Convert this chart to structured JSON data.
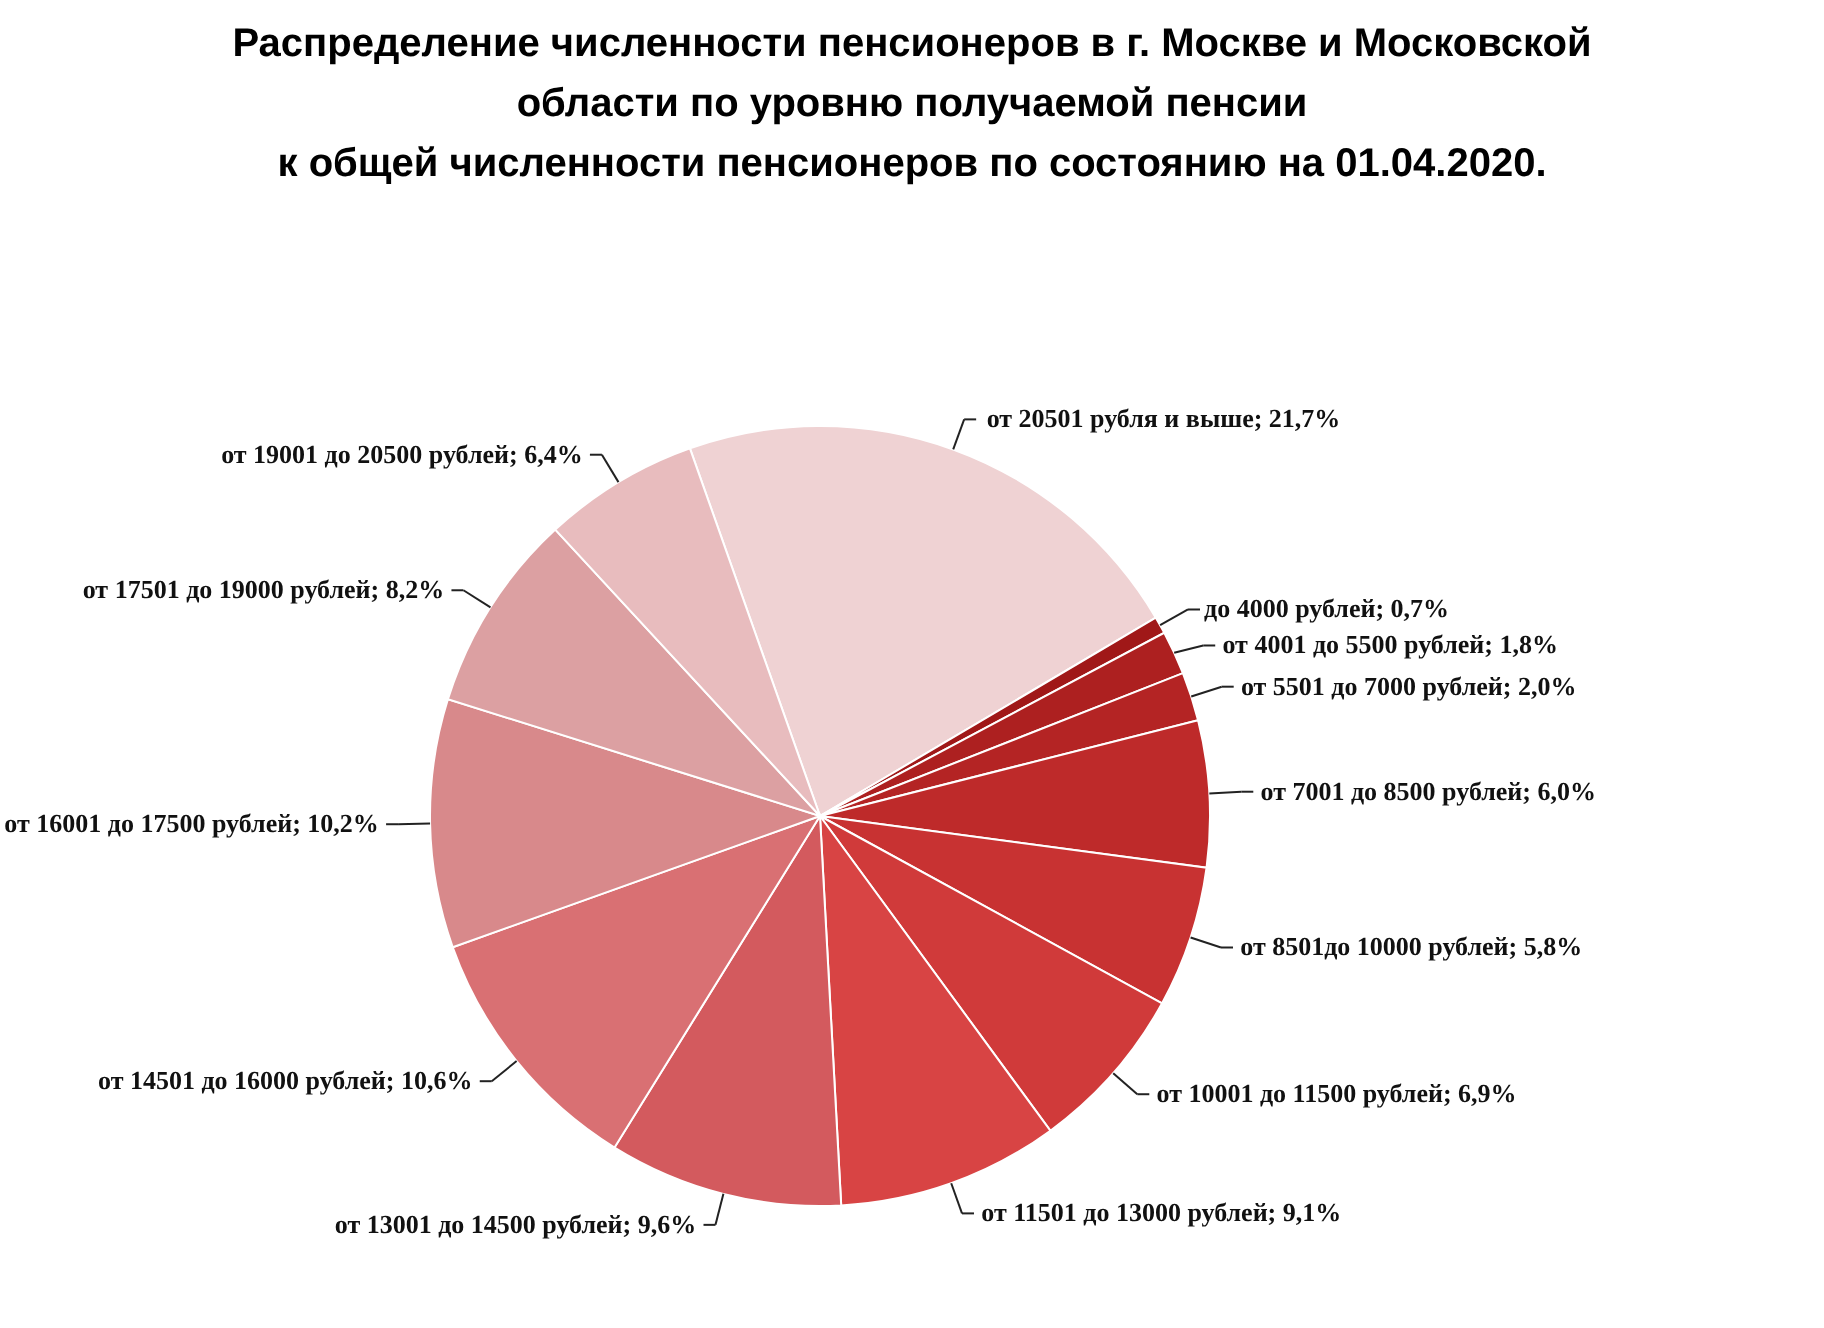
{
  "chart_data": {
    "type": "pie",
    "title": "Распределение численности пенсионеров в г. Москве и Московской\nобласти по уровню получаемой пенсии\nк общей численности пенсионеров по состоянию на 01.04.2020.",
    "categories": [
      "от  20501 рубля  и выше",
      "до 4000 рублей",
      "от  4001 до 5500 рублей",
      "от  5501 до 7000 рублей",
      "от  7001 до 8500 рублей",
      "от  8501до 10000 рублей",
      "от  10001 до 11500 рублей",
      "от  11501 до 13000 рублей",
      "от  13001 до 14500 рублей",
      "от  14501 до 16000 рублей",
      "от  16001 до 17500 рублей",
      "от  17501 до 19000 рублей",
      "от  19001 до 20500 рублей"
    ],
    "values": [
      21.7,
      0.7,
      1.8,
      2.0,
      6.0,
      5.8,
      6.9,
      9.1,
      9.6,
      10.6,
      10.2,
      8.2,
      6.4
    ],
    "value_labels": [
      "21,7%",
      "0,7%",
      "1,8%",
      "2,0%",
      "6,0%",
      "5,8%",
      "6,9%",
      "9,1%",
      "9,6%",
      "10,6%",
      "10,2%",
      "8,2%",
      "6,4%"
    ],
    "colors": [
      "#efd2d3",
      "#a01818",
      "#ad2020",
      "#b42424",
      "#be2a2a",
      "#c83232",
      "#d03a3a",
      "#d84444",
      "#d35a5e",
      "#d97073",
      "#d8898b",
      "#dca0a2",
      "#e8bcbe"
    ]
  }
}
